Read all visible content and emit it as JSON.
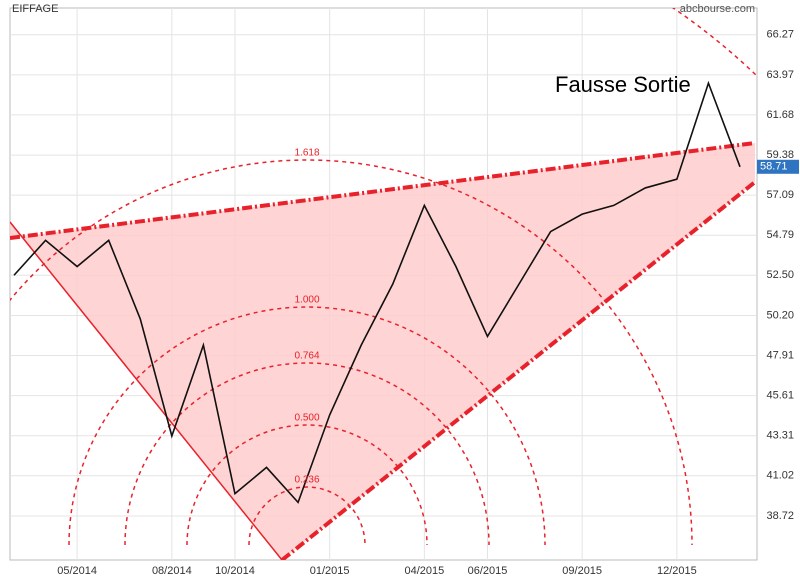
{
  "chart_data": {
    "type": "line",
    "title": "EIFFAGE",
    "source": "abcbourse.com",
    "annotation": "Fausse Sortie",
    "fib_labels": [
      "1.618",
      "1.000",
      "0.764",
      "0.500",
      "0.236"
    ],
    "x": [
      "03/2014",
      "04/2014",
      "05/2014",
      "06/2014",
      "07/2014",
      "08/2014",
      "09/2014",
      "10/2014",
      "11/2014",
      "12/2014",
      "01/2015",
      "02/2015",
      "03/2015",
      "04/2015",
      "05/2015",
      "06/2015",
      "07/2015",
      "08/2015",
      "09/2015",
      "10/2015",
      "11/2015",
      "12/2015",
      "01/2016",
      "02/2016"
    ],
    "values": [
      52.5,
      54.5,
      53,
      54.5,
      50,
      43.3,
      48.5,
      40,
      41.5,
      39.5,
      44.5,
      48.5,
      52,
      56.5,
      53,
      49,
      52,
      55,
      56,
      56.5,
      57.5,
      58,
      63.5,
      58.71
    ],
    "color": "#111111",
    "xticks": [
      "05/2014",
      "08/2014",
      "10/2014",
      "01/2015",
      "04/2015",
      "06/2015",
      "09/2015",
      "12/2015"
    ],
    "ylim": [
      36.2,
      67.8
    ],
    "yticks": [
      38.72,
      41.02,
      43.31,
      45.61,
      47.91,
      {
        "value": 50.2,
        "label": "50.20"
      },
      {
        "value": 52.5,
        "label": "52.50"
      },
      54.79,
      57.09,
      59.38,
      61.68,
      63.97,
      66.27
    ],
    "grid": true
  }
}
